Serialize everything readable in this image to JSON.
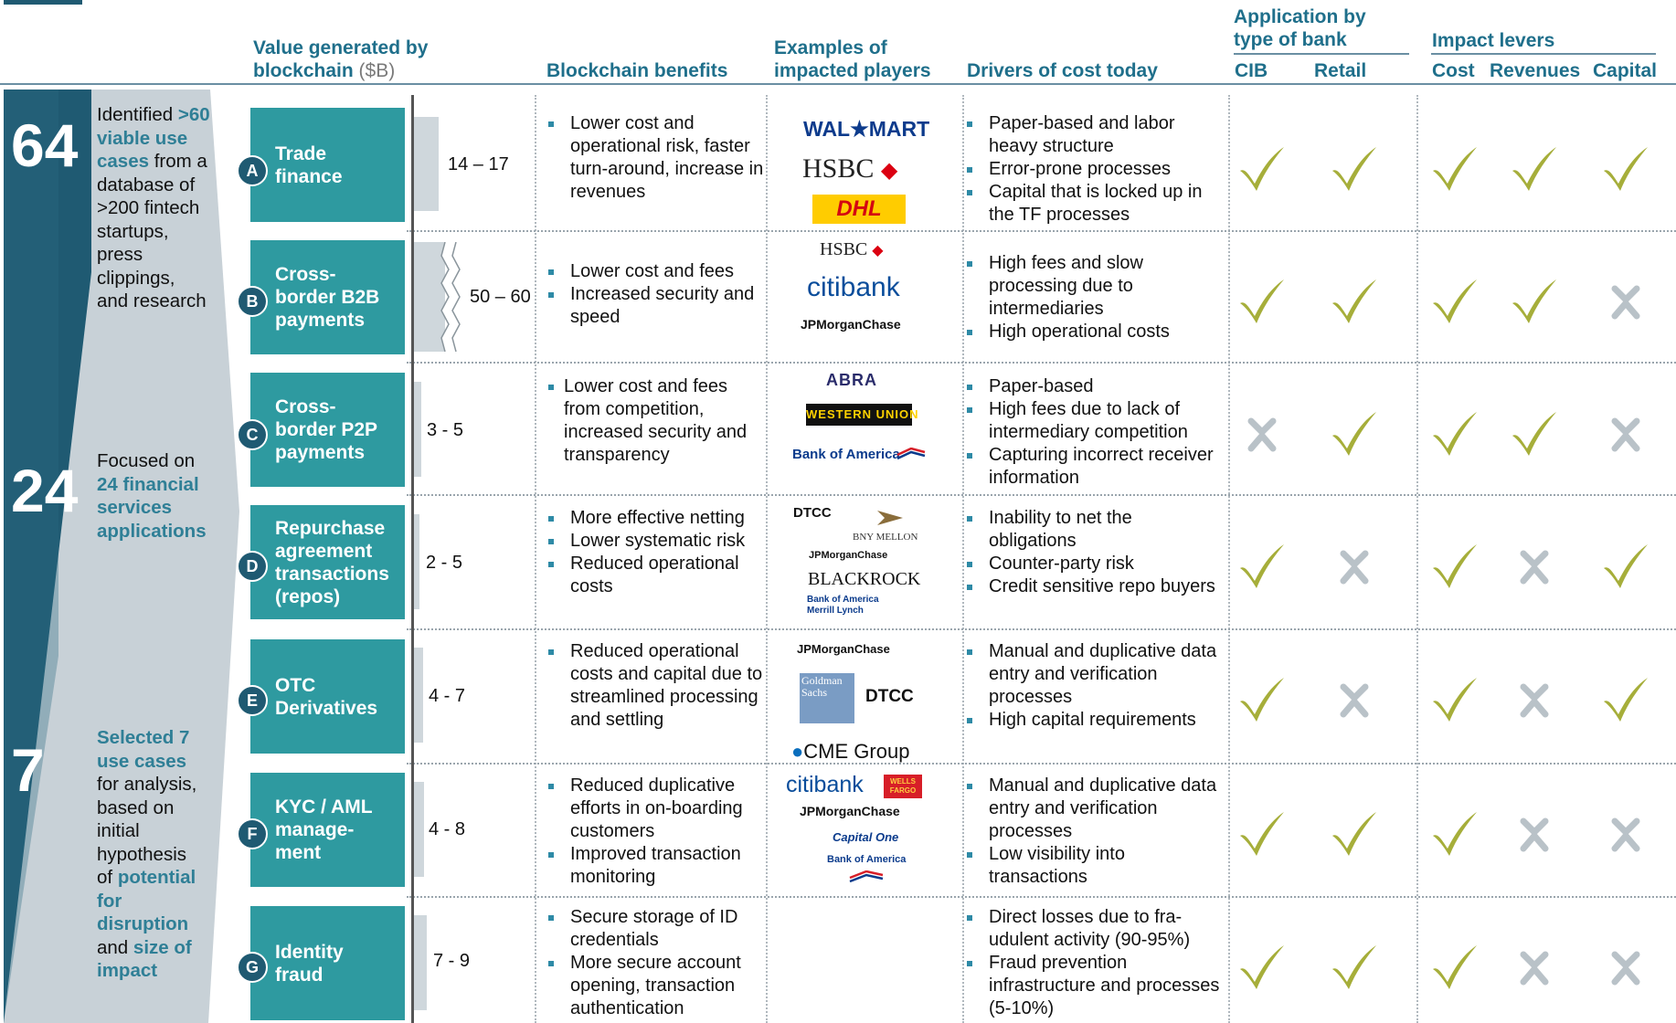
{
  "headers": {
    "value": "Value generated by blockchain",
    "value_unit": "($B)",
    "benefits": "Blockchain benefits",
    "players": "Examples of impacted players",
    "drivers": "Drivers of cost today",
    "app_group": "Application by type of bank",
    "cib": "CIB",
    "retail": "Retail",
    "levers_group": "Impact levers",
    "cost": "Cost",
    "revenues": "Revenues",
    "capital": "Capital"
  },
  "funnel": [
    {
      "number": "64",
      "pre": "Identified ",
      "hl": ">60 viable use cases",
      "post": " from a database of >200 fintech startups, press clippings, and research"
    },
    {
      "number": "24",
      "pre": "Focused on ",
      "hl": "24 financial services applications",
      "post": ""
    },
    {
      "number": "7"
    }
  ],
  "funnel_third": {
    "hl1": "Selected 7 use cases",
    "t1": "for analysis, based on initial hypothesis of",
    "hl2": "potential for disruption",
    "t2": "and",
    "hl3": "size of impact"
  },
  "colors": {
    "check": "#a6ae3a",
    "cross": "#b9c2c8",
    "teal": "#2e9aa0",
    "navy": "#1f5a72"
  },
  "rows": [
    {
      "letter": "A",
      "name": "Trade finance",
      "value": "14 – 17",
      "benefits": [
        "Lower cost and operational risk, faster turn-around, increase in revenues"
      ],
      "players": [
        "WAL★MART",
        "HSBC",
        "DHL"
      ],
      "drivers": [
        "Paper-based and labor heavy structure",
        "Error-prone processes",
        "Capital that is locked up in the TF processes"
      ],
      "marks": [
        true,
        true,
        true,
        true,
        true
      ]
    },
    {
      "letter": "B",
      "name": "Cross-border B2B payments",
      "value": "50 – 60",
      "benefits": [
        "Lower cost and fees",
        "Increased security and speed"
      ],
      "players": [
        "HSBC",
        "citibank",
        "JPMorganChase"
      ],
      "drivers": [
        "High fees and slow processing due to intermediaries",
        "High operational costs"
      ],
      "marks": [
        true,
        true,
        true,
        true,
        false
      ]
    },
    {
      "letter": "C",
      "name": "Cross-border P2P payments",
      "value": "3 - 5",
      "benefits": [
        "Lower cost and fees from competition, increased security and transparency"
      ],
      "players": [
        "ABRA",
        "WESTERN UNION",
        "Bank of America"
      ],
      "drivers": [
        "Paper-based",
        "High fees due to lack of intermediary competition",
        "Capturing incorrect receiver information"
      ],
      "marks": [
        false,
        true,
        true,
        true,
        false
      ]
    },
    {
      "letter": "D",
      "name": "Repurchase agreement transactions (repos)",
      "value": "2 - 5",
      "benefits": [
        "More effective netting",
        "Lower systematic risk",
        "Reduced operational costs"
      ],
      "players": [
        "DTCC",
        "BNY MELLON",
        "JPMorganChase",
        "BLACKROCK",
        "Bank of America Merrill Lynch"
      ],
      "drivers": [
        "Inability to net the obligations",
        "Counter-party risk",
        "Credit sensitive repo buyers"
      ],
      "marks": [
        true,
        false,
        true,
        false,
        true
      ]
    },
    {
      "letter": "E",
      "name": "OTC Derivatives",
      "value": "4 - 7",
      "benefits": [
        "Reduced operational costs and capital due to streamlined processing and settling"
      ],
      "players": [
        "JPMorganChase",
        "Goldman Sachs",
        "DTCC",
        "CME Group"
      ],
      "drivers": [
        "Manual and duplicative data entry and verification processes",
        "High capital requirements"
      ],
      "marks": [
        true,
        false,
        true,
        false,
        true
      ]
    },
    {
      "letter": "F",
      "name": "KYC / AML manage-ment",
      "value": "4 - 8",
      "benefits": [
        "Reduced duplicative efforts in on-boarding customers",
        "Improved transaction monitoring"
      ],
      "players": [
        "citibank",
        "WELLS FARGO",
        "JPMorganChase",
        "Capital One",
        "Bank of America"
      ],
      "drivers": [
        "Manual and duplicative data entry and verification processes",
        "Low visibility into transactions"
      ],
      "marks": [
        true,
        true,
        true,
        false,
        false
      ]
    },
    {
      "letter": "G",
      "name": "Identity fraud",
      "value": "7 - 9",
      "benefits": [
        "Secure storage of ID credentials",
        "More secure account opening, transaction authentication"
      ],
      "players": [],
      "drivers": [
        "Direct losses due to fra-udulent activity (90-95%)",
        "Fraud prevention infrastructure and processes (5-10%)"
      ],
      "marks": [
        true,
        true,
        true,
        false,
        false
      ]
    }
  ]
}
